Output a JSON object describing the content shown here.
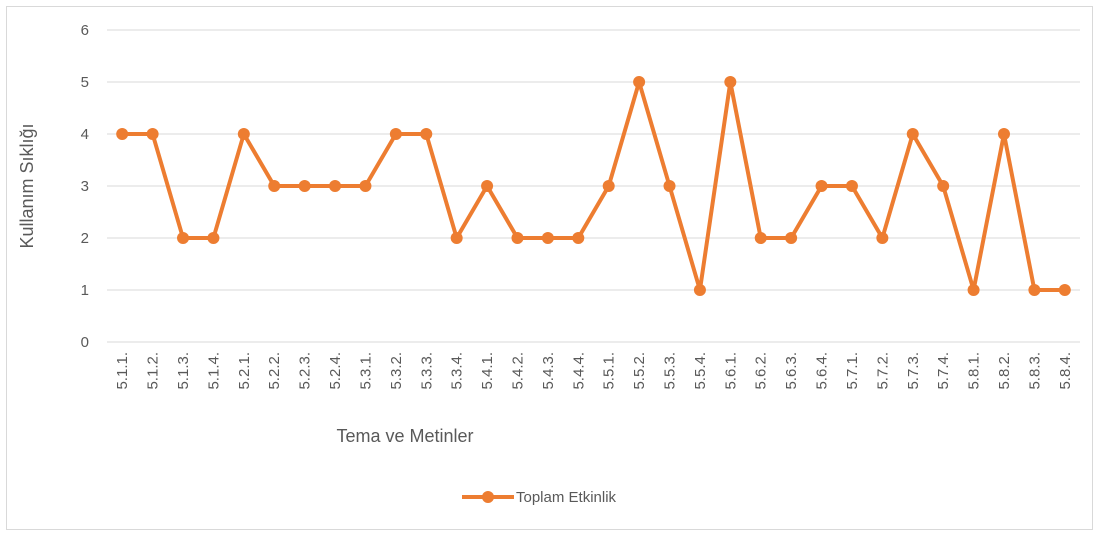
{
  "chart_data": {
    "type": "line",
    "x_label": "Tema ve Metinler",
    "y_label": "Kullanım Sıklığı",
    "categories": [
      "5.1.1.",
      "5.1.2.",
      "5.1.3.",
      "5.1.4.",
      "5.2.1.",
      "5.2.2.",
      "5.2.3.",
      "5.2.4.",
      "5.3.1.",
      "5.3.2.",
      "5.3.3.",
      "5.3.4.",
      "5.4.1.",
      "5.4.2.",
      "5.4.3.",
      "5.4.4.",
      "5.5.1.",
      "5.5.2.",
      "5.5.3.",
      "5.5.4.",
      "5.6.1.",
      "5.6.2.",
      "5.6.3.",
      "5.6.4.",
      "5.7.1.",
      "5.7.2.",
      "5.7.3.",
      "5.7.4.",
      "5.8.1.",
      "5.8.2.",
      "5.8.3.",
      "5.8.4."
    ],
    "series": [
      {
        "name": "Toplam Etkinlik",
        "color": "#ed7d31",
        "values": [
          4,
          4,
          2,
          2,
          4,
          3,
          3,
          3,
          3,
          4,
          4,
          2,
          3,
          2,
          2,
          2,
          3,
          5,
          3,
          1,
          5,
          2,
          2,
          3,
          3,
          2,
          4,
          3,
          1,
          4,
          1,
          1
        ]
      }
    ],
    "ylim": [
      0,
      6
    ],
    "yticks": [
      0,
      1,
      2,
      3,
      4,
      5,
      6
    ],
    "grid": true,
    "legend": "bottom"
  }
}
